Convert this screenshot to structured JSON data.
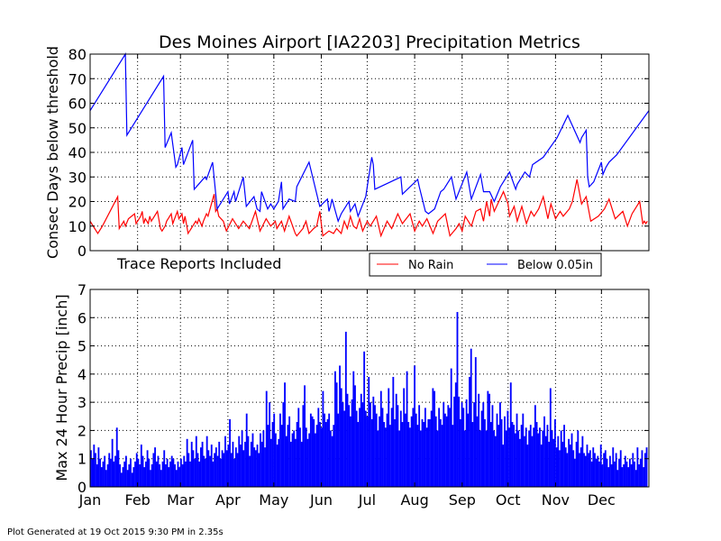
{
  "footer": "Plot Generated at 19 Oct 2015 9:30 PM in 2.35s",
  "colors": {
    "no_rain": "#ff0000",
    "below": "#0000ff",
    "bars": "#0000ff",
    "axis": "#000000",
    "grid": "#000000"
  },
  "chart_data": [
    {
      "type": "line",
      "title": "Des Moines Airport [IA2203] Precipitation Metrics",
      "xlabel": "",
      "ylabel": "Consec Days below threshold",
      "annotation": "Trace Reports Included",
      "xlim": [
        1,
        366
      ],
      "ylim": [
        0,
        80
      ],
      "yticks": [
        0,
        10,
        20,
        30,
        40,
        50,
        60,
        70,
        80
      ],
      "grid": true,
      "legend_position": "below-right",
      "series": [
        {
          "name": "No Rain",
          "color": "#ff0000",
          "x": [
            1,
            4,
            6,
            9,
            19,
            20,
            23,
            24,
            26,
            30,
            31,
            34,
            35,
            36,
            37,
            39,
            40,
            41,
            45,
            47,
            48,
            50,
            51,
            52,
            54,
            55,
            58,
            59,
            61,
            62,
            63,
            65,
            66,
            67,
            68,
            70,
            71,
            72,
            74,
            75,
            77,
            78,
            82,
            83,
            84,
            85,
            88,
            90,
            94,
            98,
            101,
            105,
            109,
            112,
            116,
            119,
            122,
            123,
            126,
            128,
            131,
            135,
            136,
            140,
            142,
            144,
            147,
            149,
            151,
            153,
            157,
            160,
            162,
            165,
            167,
            169,
            171,
            173,
            175,
            177,
            179,
            182,
            184,
            188,
            191,
            195,
            198,
            202,
            205,
            210,
            213,
            216,
            218,
            221,
            225,
            228,
            233,
            236,
            240,
            242,
            244,
            246,
            250,
            253,
            256,
            258,
            260,
            262,
            263,
            265,
            271,
            274,
            275,
            278,
            280,
            283,
            286,
            289,
            291,
            294,
            297,
            300,
            302,
            305,
            308,
            310,
            314,
            316,
            319,
            322,
            325,
            328,
            333,
            337,
            340,
            344,
            349,
            352,
            355,
            360,
            362,
            363,
            364,
            365
          ],
          "values": [
            12,
            9,
            7,
            10,
            22,
            9,
            12,
            10,
            13,
            15,
            11,
            14,
            16,
            11,
            13,
            11,
            14,
            12,
            16,
            9,
            8,
            10,
            12,
            13,
            15,
            11,
            16,
            13,
            15,
            11,
            14,
            7,
            8,
            9,
            10,
            12,
            11,
            13,
            10,
            12,
            15,
            14,
            23,
            16,
            17,
            14,
            12,
            8,
            13,
            9,
            12,
            9,
            16,
            8,
            13,
            10,
            12,
            9,
            12,
            8,
            14,
            7,
            6,
            9,
            12,
            7,
            9,
            10,
            16,
            6,
            8,
            7,
            9,
            7,
            12,
            9,
            14,
            10,
            9,
            13,
            8,
            12,
            10,
            14,
            6,
            12,
            9,
            15,
            11,
            15,
            8,
            12,
            10,
            13,
            7,
            12,
            15,
            6,
            9,
            11,
            8,
            14,
            10,
            16,
            17,
            12,
            20,
            14,
            21,
            16,
            24,
            19,
            14,
            18,
            12,
            18,
            11,
            16,
            14,
            17,
            22,
            13,
            19,
            13,
            16,
            14,
            17,
            20,
            29,
            19,
            22,
            12,
            14,
            17,
            21,
            13,
            16,
            10,
            15,
            20,
            11,
            12,
            11,
            12
          ]
        },
        {
          "name": "Below 0.05in",
          "color": "#0000ff",
          "x": [
            1,
            10,
            24,
            25,
            49,
            50,
            54,
            57,
            58,
            61,
            62,
            68,
            69,
            76,
            77,
            81,
            84,
            91,
            92,
            95,
            96,
            101,
            103,
            108,
            110,
            112,
            113,
            117,
            119,
            121,
            124,
            126,
            127,
            131,
            135,
            136,
            144,
            151,
            156,
            157,
            158,
            159,
            163,
            165,
            170,
            171,
            174,
            176,
            181,
            185,
            186,
            187,
            204,
            205,
            215,
            216,
            220,
            222,
            226,
            230,
            232,
            234,
            237,
            240,
            247,
            250,
            256,
            258,
            262,
            265,
            269,
            275,
            279,
            280,
            285,
            288,
            290,
            297,
            306,
            313,
            321,
            322,
            325,
            326,
            327,
            330,
            335,
            336,
            338,
            340,
            345,
            366
          ],
          "values": [
            57,
            66,
            80,
            47,
            71,
            42,
            48,
            34,
            35,
            42,
            35,
            45,
            25,
            30,
            29,
            36,
            17,
            24,
            19,
            24,
            20,
            30,
            18,
            22,
            17,
            16,
            24,
            17,
            19,
            17,
            20,
            28,
            17,
            21,
            20,
            26,
            36,
            18,
            21,
            16,
            18,
            21,
            12,
            15,
            20,
            16,
            19,
            14,
            22,
            38,
            35,
            25,
            30,
            23,
            29,
            26,
            16,
            15,
            17,
            24,
            25,
            27,
            30,
            21,
            32,
            21,
            31,
            24,
            24,
            20,
            26,
            32,
            25,
            27,
            32,
            30,
            35,
            38,
            46,
            55,
            44,
            46,
            49,
            30,
            26,
            28,
            36,
            31,
            34,
            36,
            39,
            57
          ]
        }
      ]
    },
    {
      "type": "bar",
      "title": "",
      "xlabel": "",
      "ylabel": "Max 24 Hour Precip [inch]",
      "xlim": [
        1,
        366
      ],
      "ylim": [
        0,
        7
      ],
      "yticks": [
        0,
        1,
        2,
        3,
        4,
        5,
        6,
        7
      ],
      "grid": true,
      "x_tick_labels": [
        "Jan",
        "Feb",
        "Mar",
        "Apr",
        "May",
        "Jun",
        "Jul",
        "Aug",
        "Sep",
        "Oct",
        "Nov",
        "Dec"
      ],
      "x_tick_days": [
        1,
        32,
        60,
        91,
        121,
        152,
        182,
        213,
        244,
        274,
        305,
        335
      ],
      "daily_values": [
        1.3,
        1.0,
        1.5,
        1.2,
        0.8,
        1.4,
        1.0,
        0.7,
        0.9,
        1.1,
        0.6,
        0.8,
        1.2,
        1.0,
        1.7,
        0.9,
        1.1,
        2.1,
        1.3,
        0.8,
        0.5,
        0.7,
        0.9,
        1.1,
        0.6,
        0.8,
        1.0,
        0.5,
        0.7,
        0.9,
        1.2,
        1.0,
        0.8,
        1.5,
        1.1,
        0.7,
        0.9,
        1.3,
        1.0,
        0.6,
        0.8,
        1.2,
        1.4,
        0.9,
        1.1,
        0.8,
        0.6,
        0.9,
        1.3,
        0.8,
        1.0,
        0.7,
        0.9,
        1.1,
        1.0,
        0.8,
        0.6,
        0.9,
        0.7,
        1.0,
        0.8,
        1.1,
        0.9,
        1.7,
        1.2,
        0.9,
        1.6,
        1.3,
        1.0,
        1.8,
        1.2,
        0.9,
        1.4,
        1.6,
        1.1,
        1.0,
        1.8,
        1.3,
        1.1,
        1.5,
        0.9,
        1.2,
        1.4,
        1.1,
        1.6,
        1.0,
        1.3,
        1.2,
        1.8,
        1.3,
        1.5,
        2.4,
        1.2,
        1.6,
        1.0,
        1.4,
        1.2,
        1.8,
        1.5,
        2.0,
        1.3,
        1.6,
        2.6,
        1.8,
        1.1,
        1.6,
        1.9,
        1.4,
        1.3,
        1.5,
        1.2,
        1.9,
        1.6,
        2.0,
        1.4,
        3.4,
        2.2,
        3.0,
        1.7,
        2.3,
        2.6,
        1.9,
        1.5,
        1.7,
        2.6,
        2.2,
        3.0,
        3.7,
        1.8,
        2.2,
        2.5,
        1.6,
        1.9,
        2.0,
        1.7,
        2.3,
        2.8,
        2.1,
        1.6,
        2.9,
        3.6,
        2.1,
        1.7,
        1.9,
        2.6,
        2.5,
        2.4,
        1.9,
        2.2,
        2.8,
        2.3,
        2.1,
        3.4,
        2.6,
        2.3,
        2.4,
        2.6,
        2.0,
        1.8,
        2.2,
        4.1,
        3.7,
        2.6,
        4.3,
        3.5,
        3.0,
        2.7,
        5.5,
        3.3,
        2.9,
        2.5,
        3.1,
        4.1,
        3.6,
        2.7,
        2.3,
        2.8,
        3.3,
        3.0,
        4.8,
        2.7,
        2.5,
        3.9,
        3.0,
        2.4,
        3.2,
        2.9,
        2.6,
        2.0,
        2.5,
        3.4,
        2.8,
        2.3,
        2.1,
        2.6,
        3.5,
        2.2,
        2.8,
        3.9,
        2.4,
        3.3,
        2.9,
        2.0,
        2.7,
        2.3,
        3.5,
        2.6,
        4.1,
        2.3,
        2.1,
        2.5,
        2.8,
        4.3,
        2.6,
        2.2,
        2.9,
        2.0,
        2.4,
        2.3,
        2.8,
        2.1,
        2.4,
        2.4,
        2.7,
        3.5,
        3.4,
        2.5,
        2.0,
        2.8,
        2.4,
        2.2,
        3.0,
        2.6,
        2.5,
        2.9,
        2.8,
        4.2,
        2.2,
        3.2,
        3.7,
        6.2,
        3.2,
        2.4,
        3.0,
        2.8,
        2.0,
        3.1,
        2.6,
        3.9,
        4.9,
        2.3,
        3.0,
        4.6,
        2.5,
        3.3,
        2.0,
        2.7,
        3.0,
        2.4,
        2.0,
        3.4,
        3.3,
        2.3,
        2.9,
        2.0,
        1.8,
        2.6,
        2.2,
        3.0,
        2.4,
        1.5,
        2.5,
        2.0,
        2.7,
        2.1,
        3.7,
        2.3,
        2.2,
        1.9,
        2.6,
        2.0,
        1.7,
        2.2,
        2.6,
        1.8,
        2.1,
        1.5,
        2.0,
        2.2,
        1.8,
        2.1,
        2.9,
        2.3,
        1.9,
        2.1,
        1.5,
        2.0,
        2.5,
        1.8,
        2.2,
        1.6,
        3.5,
        2.0,
        1.7,
        2.4,
        1.4,
        1.8,
        1.3,
        2.0,
        1.6,
        2.2,
        1.4,
        1.2,
        1.7,
        1.5,
        1.9,
        1.3,
        1.0,
        1.6,
        2.0,
        1.2,
        1.4,
        1.8,
        1.2,
        1.1,
        1.5,
        1.2,
        1.3,
        0.9,
        1.4,
        1.2,
        1.0,
        1.1,
        0.9,
        1.5,
        0.8,
        1.2,
        1.3,
        1.0,
        0.7,
        1.1,
        0.8,
        1.4,
        0.9,
        1.2,
        0.6,
        1.0,
        1.3,
        0.7,
        0.8,
        1.1,
        0.9,
        0.7,
        1.0,
        0.8,
        1.2,
        0.9,
        0.6,
        1.4,
        0.8,
        1.0,
        1.3,
        0.7,
        1.2,
        1.4
      ]
    }
  ]
}
